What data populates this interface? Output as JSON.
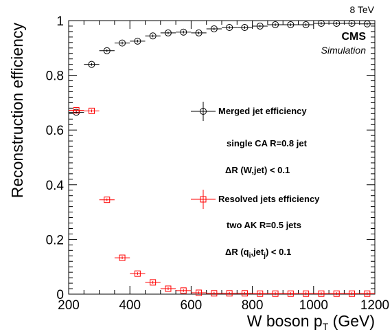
{
  "chart_data": {
    "type": "scatter",
    "xlabel": "W boson p",
    "xlabel_sub": "T",
    "xlabel_unit": " (GeV)",
    "ylabel": "Reconstruction efficiency",
    "xlim": [
      200,
      1200
    ],
    "ylim": [
      0,
      1
    ],
    "x_ticks": [
      200,
      400,
      600,
      800,
      1000,
      1200
    ],
    "y_ticks": [
      0,
      0.2,
      0.4,
      0.6,
      0.8,
      1
    ],
    "y_tick_labels": [
      "0",
      "0.2",
      "0.4",
      "0.6",
      "0.8",
      "1"
    ],
    "grid": false,
    "legend_position": "right",
    "energy_label": "8 TeV",
    "experiment_label": "CMS",
    "simulation_label": "Simulation",
    "series": [
      {
        "name": "Merged jet efficiency",
        "color": "#000000",
        "marker": "open-circle",
        "bin_edges": [
          200,
          250,
          300,
          350,
          400,
          450,
          500,
          550,
          600,
          650,
          700,
          750,
          800,
          850,
          900,
          950,
          1000,
          1050,
          1100,
          1150,
          1200
        ],
        "values": [
          0.665,
          0.84,
          0.89,
          0.918,
          0.925,
          0.944,
          0.955,
          0.958,
          0.955,
          0.97,
          0.975,
          0.975,
          0.98,
          0.985,
          0.985,
          0.985,
          0.99,
          0.99,
          0.99,
          0.988
        ]
      },
      {
        "name": "Resolved jets efficiency",
        "color": "#ff0000",
        "marker": "open-square",
        "bin_edges": [
          200,
          250,
          300,
          350,
          400,
          450,
          500,
          550,
          600,
          650,
          700,
          750,
          800,
          850,
          900,
          950,
          1000,
          1050,
          1100,
          1150,
          1200
        ],
        "values": [
          0.672,
          0.67,
          0.345,
          0.133,
          0.075,
          0.043,
          0.02,
          0.013,
          0.005,
          0.003,
          0.003,
          0.003,
          0.002,
          0.002,
          0.002,
          0.002,
          0.002,
          0.002,
          0.002,
          0.002
        ]
      }
    ],
    "annotations": [
      {
        "text": "single CA R=0.8 jet"
      },
      {
        "pre": "ΔR (W,jet) < 0.1"
      },
      {
        "text": "two AK R=0.5 jets"
      },
      {
        "pre": "ΔR (q",
        "sub1": "i",
        "mid": ",jet",
        "sub2": "j",
        "post": ") < 0.1"
      }
    ]
  }
}
